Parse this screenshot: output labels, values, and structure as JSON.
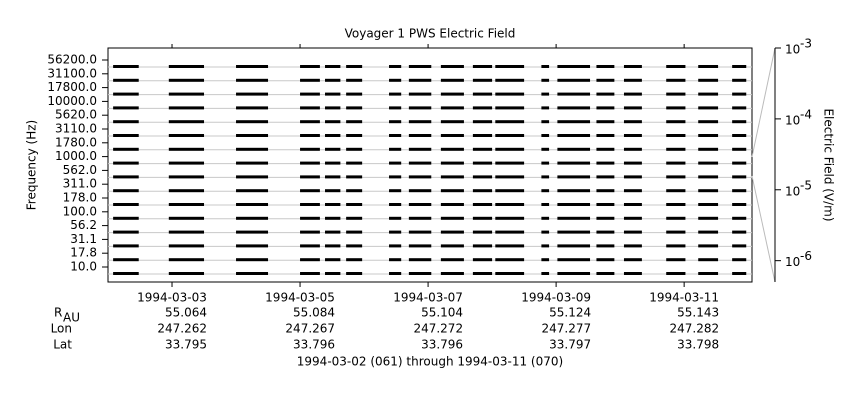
{
  "chart_data": {
    "type": "channel-strip",
    "title": "Voyager 1 PWS Electric Field",
    "y_label": "Frequency (Hz)",
    "y2_label": "Electric Field (V/m)",
    "channels": [
      "10.0",
      "17.8",
      "31.1",
      "56.2",
      "100.0",
      "178.0",
      "311.0",
      "562.0",
      "1000.0",
      "1780.0",
      "3110.0",
      "5620.0",
      "10000.0",
      "17800.0",
      "31100.0",
      "56200.0"
    ],
    "xlim": [
      0,
      10.06
    ],
    "xticks": [
      {
        "value": 1,
        "label": "1994-03-03"
      },
      {
        "value": 3,
        "label": "1994-03-05"
      },
      {
        "value": 5,
        "label": "1994-03-07"
      },
      {
        "value": 7,
        "label": "1994-03-09"
      },
      {
        "value": 9,
        "label": "1994-03-11"
      }
    ],
    "y2lim": [
      5e-07,
      0.001
    ],
    "y2log": true,
    "y2ticks": [
      {
        "value": 0.001,
        "base": "10",
        "exponent": "-3"
      },
      {
        "value": 0.0001,
        "base": "10",
        "exponent": "-4"
      },
      {
        "value": 1e-05,
        "base": "10",
        "exponent": "-5"
      },
      {
        "value": 1e-06,
        "base": "10",
        "exponent": "-6"
      }
    ],
    "color": "#000000",
    "grid": true,
    "segments": [
      [
        0.08,
        0.48
      ],
      [
        0.95,
        1.5
      ],
      [
        2.0,
        2.5
      ],
      [
        3.0,
        3.31
      ],
      [
        3.39,
        3.63
      ],
      [
        3.72,
        3.97
      ],
      [
        4.39,
        4.58
      ],
      [
        4.7,
        5.05
      ],
      [
        5.2,
        5.56
      ],
      [
        5.7,
        6.0
      ],
      [
        6.05,
        6.5
      ],
      [
        6.77,
        6.89
      ],
      [
        7.02,
        7.53
      ],
      [
        7.63,
        7.91
      ],
      [
        8.06,
        8.34
      ],
      [
        8.72,
        9.02
      ],
      [
        9.22,
        9.53
      ],
      [
        9.75,
        9.97
      ]
    ],
    "ephemeris": [
      {
        "label": "R",
        "subscript": "AU",
        "values": [
          "55.064",
          "55.084",
          "55.104",
          "55.124",
          "55.143"
        ]
      },
      {
        "label": "Lon",
        "values": [
          "247.262",
          "247.267",
          "247.272",
          "247.277",
          "247.282"
        ]
      },
      {
        "label": "Lat",
        "values": [
          "33.795",
          "33.796",
          "33.796",
          "33.797",
          "33.798"
        ]
      }
    ],
    "footer": "1994-03-02 (061) through 1994-03-11 (070)"
  }
}
